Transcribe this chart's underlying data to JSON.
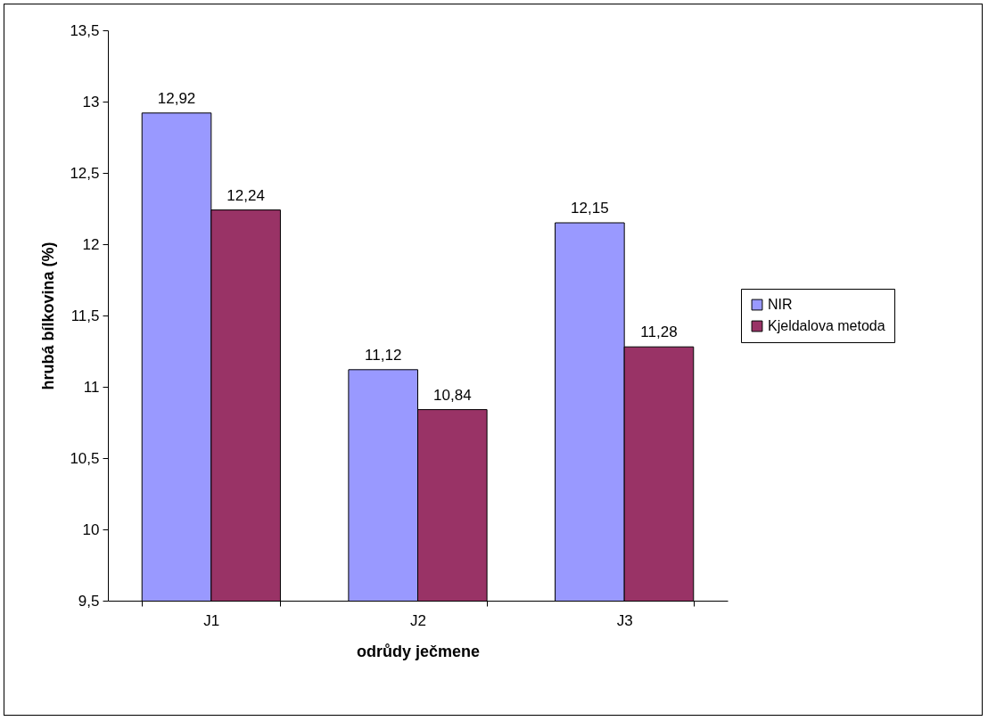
{
  "chart_data": {
    "type": "bar",
    "xlabel": "odrůdy ječmene",
    "ylabel": "hrubá bílkovina (%)",
    "categories": [
      "J1",
      "J2",
      "J3"
    ],
    "series": [
      {
        "name": "NIR",
        "color": "#9999ff",
        "values": [
          12.92,
          11.12,
          12.15
        ],
        "value_labels": [
          "12,92",
          "11,12",
          "12,15"
        ]
      },
      {
        "name": "Kjeldalova metoda",
        "color": "#993366",
        "values": [
          12.24,
          10.84,
          11.28
        ],
        "value_labels": [
          "12,24",
          "10,84",
          "11,28"
        ]
      }
    ],
    "ylim": [
      9.5,
      13.5
    ],
    "yticks": [
      {
        "value": 9.5,
        "label": "9,5"
      },
      10,
      {
        "value": 10.5,
        "label": "10,5"
      },
      11,
      {
        "value": 11.5,
        "label": "11,5"
      },
      12,
      {
        "value": 12.5,
        "label": "12,5"
      },
      13,
      {
        "value": 13.5,
        "label": "13,5"
      }
    ],
    "grid": false,
    "legend": "right"
  }
}
